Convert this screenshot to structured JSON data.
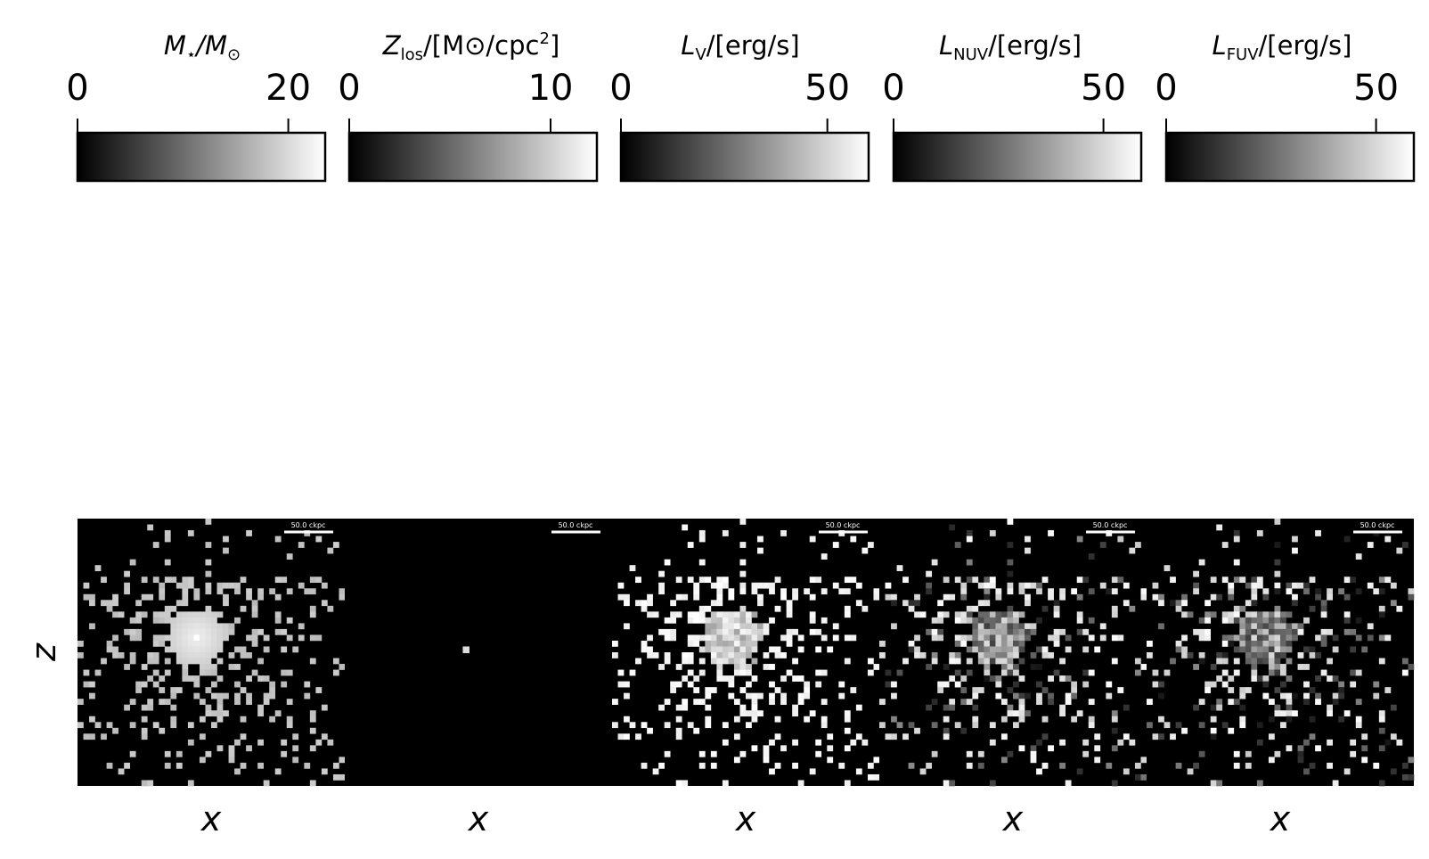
{
  "chart_data": [
    {
      "type": "heatmap",
      "colorbar": {
        "label_main": "M",
        "label_sub": "⋆",
        "label_rest": "/M",
        "label_sub2": "⊙",
        "range": [
          0,
          23.5
        ],
        "ticks": [
          0,
          20
        ],
        "tick_labels": [
          "0",
          "20"
        ]
      },
      "xlabel": "x",
      "ylabel": "z",
      "scalebar": "50.0 ckpc",
      "colormap": "grey",
      "variant": "mass",
      "seed": 11
    },
    {
      "type": "heatmap",
      "colorbar": {
        "label_main": "Z",
        "label_sub": "los",
        "label_rest": "/[M⊙/cpc",
        "label_sup": "2",
        "label_end": "]",
        "range": [
          0,
          12.3
        ],
        "ticks": [
          0,
          10
        ],
        "tick_labels": [
          "0",
          "10"
        ]
      },
      "xlabel": "x",
      "ylabel": "",
      "scalebar": "50.0 ckpc",
      "colormap": "grey",
      "variant": "metal",
      "seed": 23
    },
    {
      "type": "heatmap",
      "colorbar": {
        "label_main": "L",
        "label_sub": "V",
        "label_rest": "/[erg/s]",
        "range": [
          0,
          60
        ],
        "ticks": [
          0,
          50
        ],
        "tick_labels": [
          "0",
          "50"
        ]
      },
      "xlabel": "x",
      "ylabel": "",
      "scalebar": "50.0 ckpc",
      "colormap": "grey",
      "variant": "lumV",
      "seed": 37
    },
    {
      "type": "heatmap",
      "colorbar": {
        "label_main": "L",
        "label_sub": "NUV",
        "label_rest": "/[erg/s]",
        "range": [
          0,
          59
        ],
        "ticks": [
          0,
          50
        ],
        "tick_labels": [
          "0",
          "50"
        ]
      },
      "xlabel": "x",
      "ylabel": "",
      "scalebar": "50.0 ckpc",
      "colormap": "grey",
      "variant": "lumNUV",
      "seed": 41
    },
    {
      "type": "heatmap",
      "colorbar": {
        "label_main": "L",
        "label_sub": "FUV",
        "label_rest": "/[erg/s]",
        "range": [
          0,
          59
        ],
        "ticks": [
          0,
          50
        ],
        "tick_labels": [
          "0",
          "50"
        ]
      },
      "xlabel": "x",
      "ylabel": "",
      "scalebar": "50.0 ckpc",
      "colormap": "grey",
      "variant": "lumFUV",
      "seed": 53
    }
  ]
}
